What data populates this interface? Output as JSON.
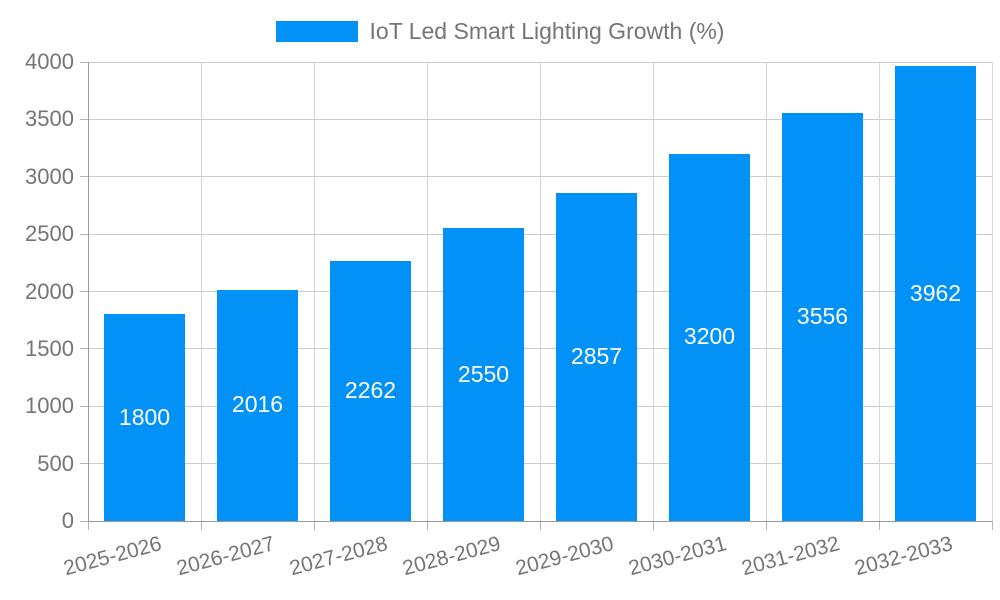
{
  "chart_data": {
    "type": "bar",
    "title": "IoT Led Smart Lighting Growth (%)",
    "categories": [
      "2025-2026",
      "2026-2027",
      "2027-2028",
      "2028-2029",
      "2029-2030",
      "2030-2031",
      "2031-2032",
      "2032-2033"
    ],
    "values": [
      1800,
      2016,
      2262,
      2550,
      2857,
      3200,
      3556,
      3962
    ],
    "value_labels": [
      "1800",
      "2016",
      "2262",
      "2550",
      "2857",
      "3200",
      "3556",
      "3962"
    ],
    "xlabel": "",
    "ylabel": "",
    "ylim": [
      0,
      4000
    ],
    "yticks": [
      "0",
      "500",
      "1000",
      "1500",
      "2000",
      "2500",
      "3000",
      "3500",
      "4000"
    ],
    "ytick_values": [
      0,
      500,
      1000,
      1500,
      2000,
      2500,
      3000,
      3500,
      4000
    ],
    "grid": "on",
    "legend_position": "top-center",
    "x_label_rotation_deg": -15,
    "colors": {
      "bar": "#0291f7",
      "bar_value_text": "#ffffff",
      "axis_text": "#757575",
      "legend_text": "#757575",
      "gridline": "#cccccc",
      "axis_line": "#9a9a9a"
    }
  }
}
